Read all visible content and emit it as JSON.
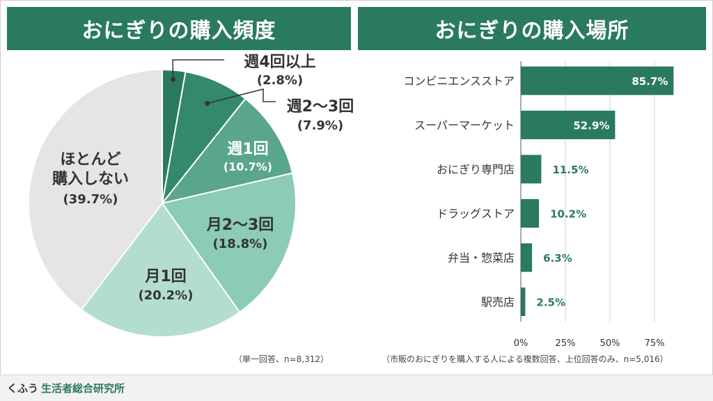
{
  "left_title": "おにぎりの購入頻度",
  "right_title": "おにぎりの購入場所",
  "left_note": "（単一回答、n=8,312）",
  "right_note": "（市販のおにぎりを購入する人による複数回答、上位回答のみ、n=5,016）",
  "footer": {
    "brand_part1": "くふう",
    "brand_part2": "生活者総合研究所"
  },
  "chart_data": [
    {
      "type": "pie",
      "title": "おにぎりの購入頻度",
      "slices": [
        {
          "label": "週4回以上",
          "value": 2.8,
          "pct_label": "(2.8%)",
          "color": "#2a7a5e"
        },
        {
          "label": "週2～3回",
          "value": 7.9,
          "pct_label": "(7.9%)",
          "color": "#33896a"
        },
        {
          "label": "週1回",
          "value": 10.7,
          "pct_label": "(10.7%)",
          "color": "#5aa68a"
        },
        {
          "label": "月2～3回",
          "value": 18.8,
          "pct_label": "(18.8%)",
          "color": "#8ccbb5"
        },
        {
          "label": "月1回",
          "value": 20.2,
          "pct_label": "(20.2%)",
          "color": "#b3ddcf"
        },
        {
          "label": "ほとんど購入しない",
          "value": 39.7,
          "pct_label": "(39.7%)",
          "color": "#e5e5e5"
        }
      ]
    },
    {
      "type": "bar",
      "orientation": "horizontal",
      "title": "おにぎりの購入場所",
      "categories": [
        "コンビニエンスストア",
        "スーパーマーケット",
        "おにぎり専門店",
        "ドラッグストア",
        "弁当・惣菜店",
        "駅売店"
      ],
      "values": [
        85.7,
        52.9,
        11.5,
        10.2,
        6.3,
        2.5
      ],
      "value_labels": [
        "85.7%",
        "52.9%",
        "11.5%",
        "10.2%",
        "6.3%",
        "2.5%"
      ],
      "xlim": [
        0,
        100
      ],
      "ticks": [
        0,
        25,
        50,
        75
      ],
      "tick_labels": [
        "0%",
        "25%",
        "50%",
        "75%"
      ],
      "grid": true,
      "bar_color": "#2a7a5e"
    }
  ]
}
